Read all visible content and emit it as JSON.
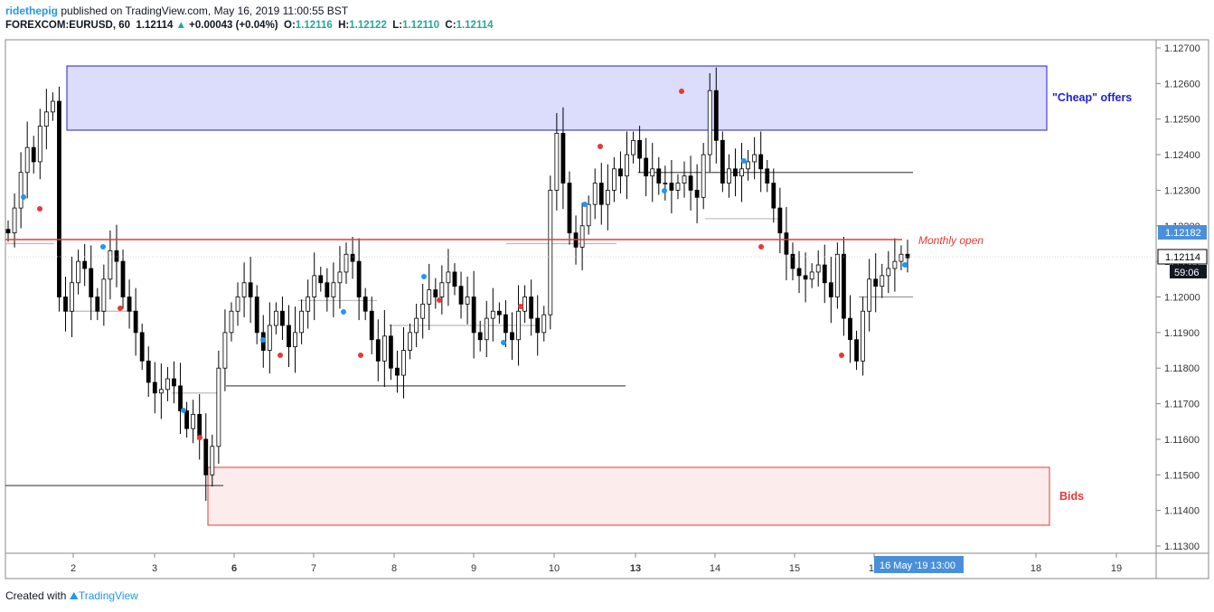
{
  "header": {
    "author": "ridethepig",
    "published_text": "published on TradingView.com, May 16, 2019 11:00:55 BST",
    "symbol": "FOREXCOM:EURUSD, 60",
    "last": "1.12114",
    "change": "+0.00043 (+0.04%)",
    "o_label": "O:",
    "o_val": "1.12116",
    "h_label": "H:",
    "h_val": "1.12122",
    "l_label": "L:",
    "l_val": "1.12110",
    "c_label": "C:",
    "c_val": "1.12114"
  },
  "footer": {
    "created_with": "Created with",
    "brand": "TradingView"
  },
  "colors": {
    "offer_zone": "#2b2bff",
    "bid_zone": "#e53935",
    "monthly_open": "#e53935",
    "price_tag": "#4a90d9",
    "candle": "#000000"
  },
  "chart_data": {
    "type": "candlestick",
    "instrument": "EURUSD",
    "timeframe": "60",
    "ylim": [
      1.1128,
      1.1272
    ],
    "y_ticks": [
      "1.12700",
      "1.12600",
      "1.12500",
      "1.12400",
      "1.12300",
      "1.12200",
      "1.12100",
      "1.12000",
      "1.11900",
      "1.11800",
      "1.11700",
      "1.11600",
      "1.11500",
      "1.11400",
      "1.11300"
    ],
    "x_ticks": [
      "2",
      "3",
      "6",
      "7",
      "8",
      "9",
      "10",
      "13",
      "14",
      "15",
      "16",
      "18",
      "19"
    ],
    "price_labels": [
      {
        "text": "1.12182",
        "kind": "alert"
      },
      {
        "text": "1.12114",
        "kind": "last"
      },
      {
        "text": "59:06",
        "kind": "countdown"
      }
    ],
    "crosshair_label": "16 May '19   13:00",
    "annotations": [
      {
        "text": "\"Cheap\" offers",
        "kind": "zone",
        "price_from": 1.1247,
        "price_to": 1.1265
      },
      {
        "text": "Bids",
        "kind": "zone",
        "price_from": 1.1136,
        "price_to": 1.1152
      },
      {
        "text": "Monthly open",
        "kind": "hline",
        "price": 1.1216
      }
    ],
    "closes": [
      1.1218,
      1.1225,
      1.1235,
      1.1242,
      1.1238,
      1.1248,
      1.1252,
      1.1255,
      1.12,
      1.1196,
      1.1204,
      1.121,
      1.1208,
      1.12,
      1.1196,
      1.1205,
      1.1213,
      1.121,
      1.12,
      1.1196,
      1.119,
      1.1182,
      1.1176,
      1.1173,
      1.1174,
      1.1177,
      1.1175,
      1.1168,
      1.1163,
      1.1167,
      1.116,
      1.115,
      1.1158,
      1.118,
      1.119,
      1.1196,
      1.12,
      1.1204,
      1.12,
      1.119,
      1.1185,
      1.1192,
      1.1196,
      1.1192,
      1.1186,
      1.119,
      1.1196,
      1.12,
      1.1206,
      1.1204,
      1.12,
      1.1204,
      1.1207,
      1.1212,
      1.121,
      1.12,
      1.1196,
      1.1188,
      1.1182,
      1.1189,
      1.118,
      1.1178,
      1.1185,
      1.119,
      1.1194,
      1.1198,
      1.1202,
      1.12,
      1.1204,
      1.1207,
      1.1203,
      1.1198,
      1.12,
      1.119,
      1.1188,
      1.1194,
      1.1196,
      1.1195,
      1.119,
      1.1188,
      1.1196,
      1.12,
      1.1194,
      1.119,
      1.1195,
      1.123,
      1.1246,
      1.1232,
      1.1218,
      1.1214,
      1.122,
      1.1226,
      1.1232,
      1.1226,
      1.123,
      1.1236,
      1.1234,
      1.124,
      1.1244,
      1.1239,
      1.1234,
      1.1236,
      1.1232,
      1.1232,
      1.123,
      1.1232,
      1.1234,
      1.123,
      1.1228,
      1.124,
      1.1258,
      1.1244,
      1.1232,
      1.1236,
      1.1234,
      1.1236,
      1.1238,
      1.124,
      1.1236,
      1.1232,
      1.1225,
      1.1218,
      1.1212,
      1.1208,
      1.1206,
      1.1205,
      1.1207,
      1.1209,
      1.1204,
      1.12,
      1.1212,
      1.1194,
      1.1188,
      1.1182,
      1.1196,
      1.1205,
      1.1203,
      1.1206,
      1.1208,
      1.121,
      1.1212,
      1.1211
    ]
  }
}
